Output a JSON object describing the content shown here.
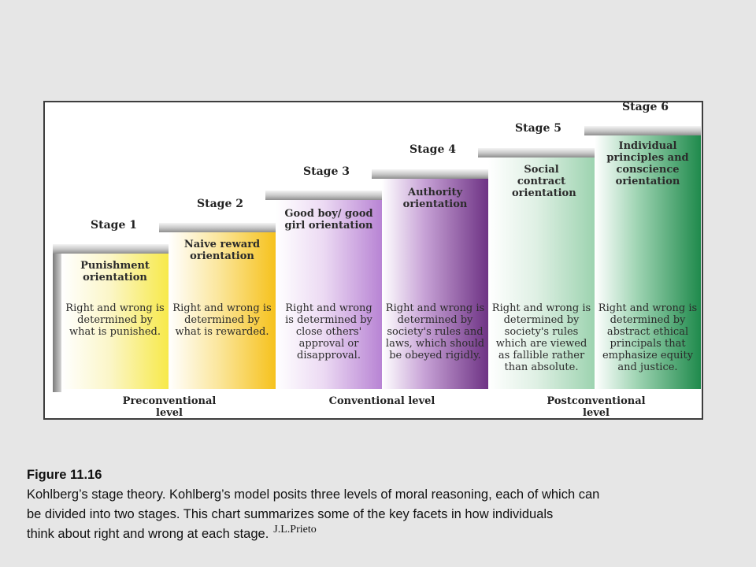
{
  "stages": [
    {
      "label": "Stage 1",
      "title": "Punishment orientation",
      "description": "Right and wrong is determined by what is punished.",
      "color": "#f7e94a"
    },
    {
      "label": "Stage 2",
      "title": "Naive reward orientation",
      "description": "Right and wrong is determined by what is rewarded.",
      "color": "#f6c21d"
    },
    {
      "label": "Stage 3",
      "title": "Good boy/ good girl orientation",
      "description": "Right and wrong is determined by close others' approval or disapproval.",
      "color": "#b884d4"
    },
    {
      "label": "Stage 4",
      "title": "Authority orientation",
      "description": "Right and wrong is determined by society's rules and laws, which should be obeyed rigidly.",
      "color": "#7a3f8f"
    },
    {
      "label": "Stage 5",
      "title": "Social contract orientation",
      "description": "Right and wrong is determined by society's rules which are viewed as fallible rather than absolute.",
      "color": "#9dd3b0"
    },
    {
      "label": "Stage 6",
      "title": "Individual principles and conscience orientation",
      "description": "Right and wrong is determined by abstract ethical principals that emphasize equity and justice.",
      "color": "#1f8a4c"
    }
  ],
  "levels": [
    {
      "label": "Preconventional level"
    },
    {
      "label": "Conventional level"
    },
    {
      "label": "Postconventional level"
    }
  ],
  "caption": {
    "figure": "Figure 11.16",
    "line1": "Kohlberg’s stage theory. Kohlberg’s model posits three levels of moral reasoning, each of which can",
    "line2": "be divided into two stages. This chart summarizes some of the key facets in how individuals",
    "line3": "think about right and wrong at each stage.",
    "credit": "J.L.Prieto"
  }
}
